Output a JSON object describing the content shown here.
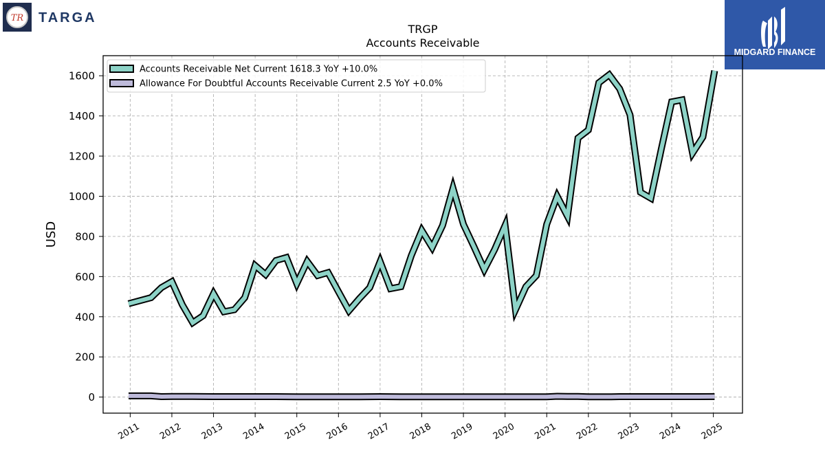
{
  "company_logo": {
    "text": "TARGA",
    "monogram": "TR"
  },
  "brand_logo": {
    "text": "MIDGARD FINANCE",
    "background_color": "#2f58a8"
  },
  "chart_data": {
    "type": "line",
    "title": "TRGP",
    "subtitle": "Accounts Receivable",
    "xlabel": "",
    "ylabel": "USD",
    "ylim": [
      -80,
      1700
    ],
    "yticks": [
      0,
      200,
      400,
      600,
      800,
      1000,
      1200,
      1400,
      1600
    ],
    "xlim": [
      2010.35,
      2025.7
    ],
    "xticks": [
      2011,
      2012,
      2013,
      2014,
      2015,
      2016,
      2017,
      2018,
      2019,
      2020,
      2021,
      2022,
      2023,
      2024,
      2025
    ],
    "xtick_labels": [
      "2011",
      "2012",
      "2013",
      "2014",
      "2015",
      "2016",
      "2017",
      "2018",
      "2019",
      "2020",
      "2021",
      "2022",
      "2023",
      "2024",
      "2025"
    ],
    "grid": true,
    "legend_position": "top-left",
    "series": [
      {
        "name": "Accounts Receivable Net Current",
        "legend_label": "Accounts Receivable Net Current  1618.3 YoY +10.0%",
        "color": "#8dd3c7",
        "x": [
          2010.96,
          2011.5,
          2011.75,
          2012.0,
          2012.25,
          2012.5,
          2012.75,
          2013.0,
          2013.25,
          2013.5,
          2013.75,
          2014.0,
          2014.25,
          2014.5,
          2014.75,
          2015.0,
          2015.25,
          2015.5,
          2015.75,
          2016.0,
          2016.25,
          2016.5,
          2016.75,
          2017.0,
          2017.25,
          2017.5,
          2017.75,
          2018.0,
          2018.25,
          2018.5,
          2018.75,
          2019.0,
          2019.25,
          2019.5,
          2019.75,
          2020.0,
          2020.25,
          2020.5,
          2020.75,
          2021.0,
          2021.25,
          2021.5,
          2021.75,
          2022.0,
          2022.25,
          2022.5,
          2022.75,
          2023.0,
          2023.25,
          2023.5,
          2023.75,
          2024.0,
          2024.25,
          2024.5,
          2024.75,
          2025.03
        ],
        "values": [
          465,
          495,
          545,
          575,
          460,
          370,
          405,
          515,
          425,
          435,
          495,
          655,
          610,
          680,
          695,
          565,
          675,
          605,
          620,
          525,
          430,
          490,
          545,
          675,
          540,
          550,
          705,
          830,
          745,
          855,
          1040,
          860,
          750,
          635,
          735,
          855,
          435,
          550,
          605,
          860,
          1000,
          900,
          1290,
          1330,
          1565,
          1605,
          1535,
          1405,
          1020,
          990,
          1235,
          1470,
          1480,
          1215,
          1295,
          1625
        ]
      },
      {
        "name": "Allowance For Doubtful Accounts Receivable Current",
        "legend_label": "Allowance For Doubtful Accounts Receivable Current  2.5 YoY +0.0%",
        "color": "#bebada",
        "x": [
          2010.96,
          2011.5,
          2011.75,
          2012.0,
          2012.5,
          2013.0,
          2013.5,
          2014.0,
          2014.5,
          2015.0,
          2015.5,
          2016.0,
          2016.5,
          2017.0,
          2017.5,
          2018.0,
          2018.5,
          2019.0,
          2019.5,
          2020.0,
          2020.5,
          2021.0,
          2021.25,
          2021.5,
          2021.75,
          2022.0,
          2022.5,
          2022.75,
          2023.0,
          2023.5,
          2024.0,
          2024.5,
          2025.03
        ],
        "values": [
          6,
          6,
          2,
          3,
          3,
          2,
          2,
          2,
          2,
          1,
          1,
          1,
          1,
          2,
          1,
          1,
          1,
          1,
          1,
          1,
          1,
          1,
          4,
          3,
          3,
          1,
          1,
          2,
          2,
          2,
          2,
          2,
          2.5
        ]
      }
    ]
  }
}
